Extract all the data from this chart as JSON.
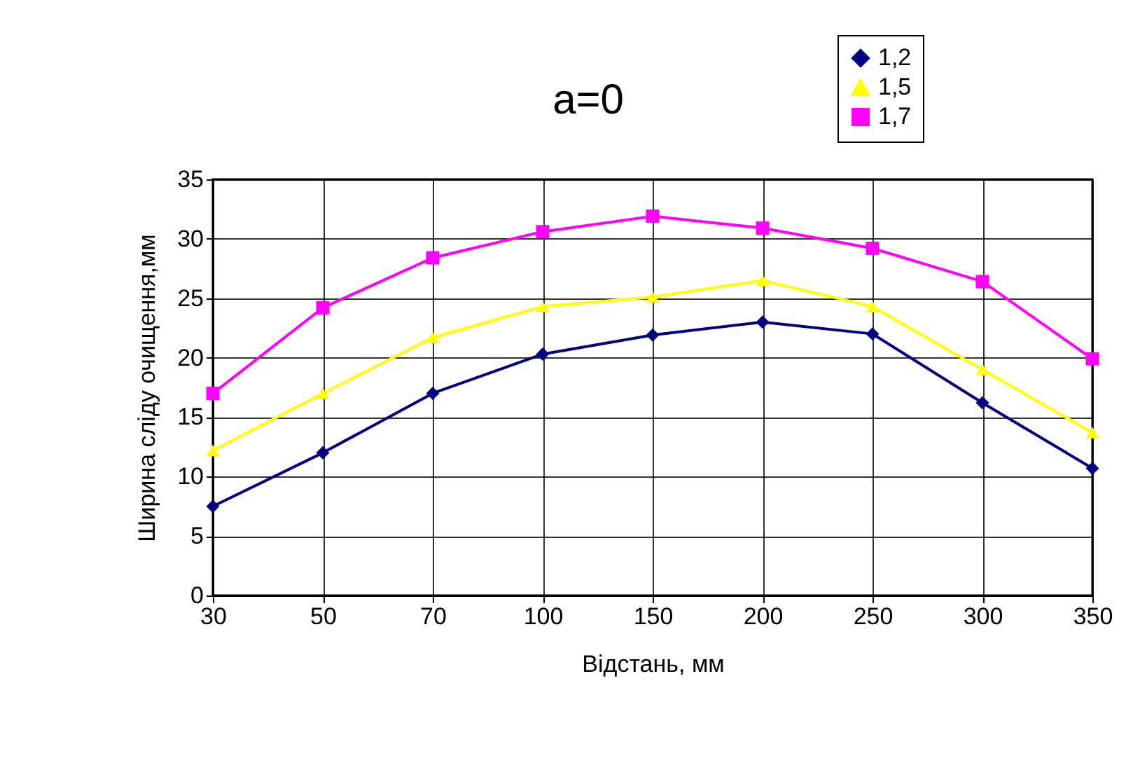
{
  "chart_data": {
    "type": "line",
    "title": "a=0",
    "xlabel": "Відстань, мм",
    "ylabel": "Ширина сліду очищення,мм",
    "categories": [
      "30",
      "50",
      "70",
      "100",
      "150",
      "200",
      "250",
      "300",
      "350"
    ],
    "ylim": [
      0,
      35
    ],
    "yticks": [
      0,
      5,
      10,
      15,
      20,
      25,
      30,
      35
    ],
    "grid": true,
    "legend": "top right",
    "series": [
      {
        "name": "1,2",
        "color": "#000080",
        "marker": "diamond",
        "values": [
          7.5,
          12,
          17,
          20.3,
          21.9,
          23,
          22,
          16.2,
          10.7
        ]
      },
      {
        "name": "1,5",
        "color": "#ffff00",
        "marker": "triangle",
        "values": [
          12.2,
          17,
          21.7,
          24.3,
          25.1,
          26.5,
          24.3,
          19,
          13.7
        ]
      },
      {
        "name": "1,7",
        "color": "#ff00ff",
        "marker": "square",
        "values": [
          17,
          24.2,
          28.4,
          30.6,
          31.9,
          30.9,
          29.2,
          26.4,
          19.9
        ]
      }
    ]
  }
}
